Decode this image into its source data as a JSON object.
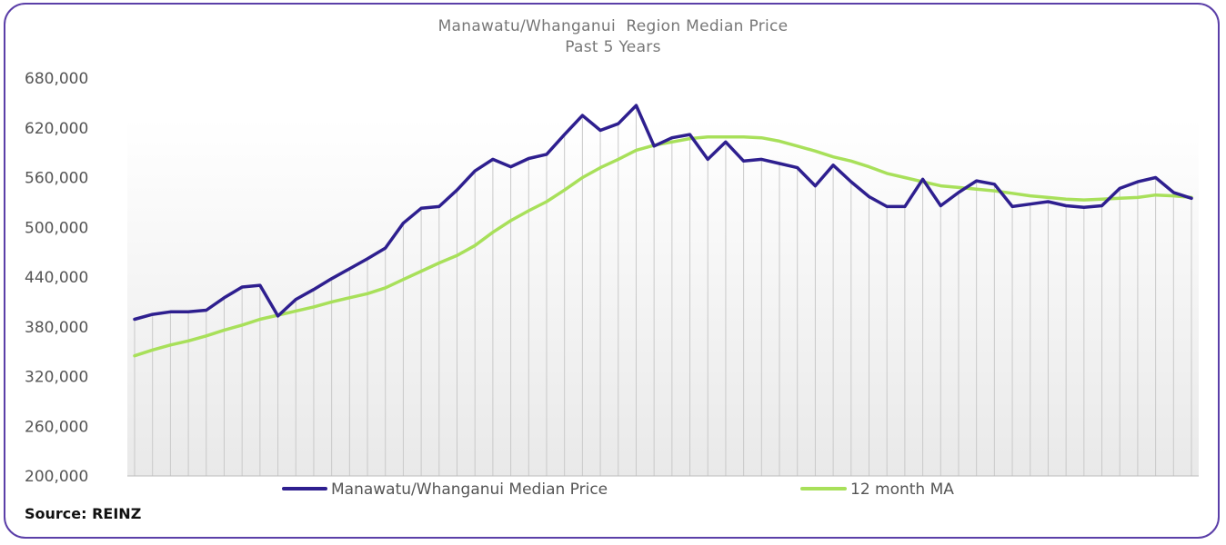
{
  "chart_data": {
    "type": "line",
    "title": "Manawatu/Whanganui  Region Median Price",
    "subtitle": "Past 5 Years",
    "xlabel": "",
    "ylabel": "",
    "ylim": [
      200000,
      680000
    ],
    "yticks": [
      "680,000",
      "620,000",
      "560,000",
      "500,000",
      "440,000",
      "380,000",
      "320,000",
      "260,000",
      "200,000"
    ],
    "ytick_values": [
      680000,
      620000,
      560000,
      500000,
      440000,
      380000,
      320000,
      260000,
      200000
    ],
    "grid": "vertical drop lines",
    "legend_position": "bottom",
    "series": [
      {
        "name": "Manawatu/Whanganui Median Price",
        "color": "#2e1f8f",
        "values": [
          389000,
          395000,
          398000,
          398000,
          400000,
          415000,
          428000,
          430000,
          393000,
          413000,
          425000,
          438000,
          450000,
          462000,
          475000,
          505000,
          523000,
          525000,
          545000,
          568000,
          582000,
          573000,
          583000,
          588000,
          612000,
          635000,
          617000,
          625000,
          647000,
          598000,
          608000,
          612000,
          582000,
          603000,
          580000,
          582000,
          577000,
          572000,
          550000,
          575000,
          555000,
          537000,
          525000,
          525000,
          558000,
          526000,
          542000,
          556000,
          552000,
          525000,
          528000,
          531000,
          526000,
          524000,
          526000,
          547000,
          555000,
          560000,
          542000,
          535000
        ]
      },
      {
        "name": "12 month MA",
        "color": "#a8e05a",
        "values": [
          345000,
          352000,
          358000,
          363000,
          369000,
          376000,
          382000,
          389000,
          394000,
          399000,
          404000,
          410000,
          415000,
          420000,
          427000,
          437000,
          447000,
          457000,
          466000,
          478000,
          494000,
          508000,
          520000,
          531000,
          545000,
          560000,
          572000,
          582000,
          593000,
          599000,
          603000,
          607000,
          609000,
          609000,
          609000,
          608000,
          604000,
          598000,
          592000,
          585000,
          580000,
          573000,
          565000,
          560000,
          555000,
          550000,
          548000,
          546000,
          544000,
          541000,
          538000,
          536000,
          534000,
          533000,
          534000,
          535000,
          536000,
          539000,
          538000,
          536000
        ]
      }
    ]
  },
  "source": "Source: REINZ"
}
